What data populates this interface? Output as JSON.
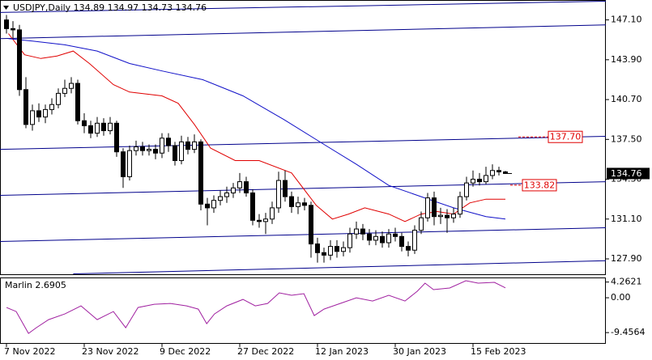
{
  "chart_data": {
    "type": "candlestick",
    "title": "USDJPY,Daily  134.89 134.97 134.73 134.76",
    "categories": [
      "7 Nov 2022",
      null,
      null,
      null,
      null,
      null,
      null,
      null,
      null,
      null,
      null,
      null,
      "23 Nov 2022",
      null,
      null,
      null,
      null,
      null,
      null,
      null,
      null,
      null,
      null,
      null,
      "9 Dec 2022",
      null,
      null,
      null,
      null,
      null,
      null,
      null,
      null,
      null,
      null,
      null,
      "27 Dec 2022",
      null,
      null,
      null,
      null,
      null,
      null,
      null,
      null,
      null,
      null,
      null,
      "12 Jan 2023",
      null,
      null,
      null,
      null,
      null,
      null,
      null,
      null,
      null,
      null,
      null,
      "30 Jan 2023",
      null,
      null,
      null,
      null,
      null,
      null,
      null,
      null,
      null,
      null,
      null,
      "15 Feb 2023",
      null,
      null,
      null,
      null,
      null
    ],
    "open": [
      147.1,
      146.4,
      146.3,
      141.5,
      138.7,
      139.8,
      139.3,
      139.9,
      140.3,
      141.2,
      141.6,
      142.0,
      139.0,
      138.6,
      138.0,
      138.8,
      138.2,
      138.8,
      136.5,
      134.5,
      136.6,
      136.9,
      136.6,
      136.7,
      136.4,
      137.6,
      137.0,
      135.8,
      137.3,
      136.7,
      137.3,
      132.3,
      132.0,
      132.6,
      132.9,
      133.2,
      133.6,
      134.1,
      133.2,
      131.0,
      130.9,
      131.1,
      132.0,
      134.2,
      132.9,
      132.1,
      132.4,
      132.2,
      129.1,
      128.4,
      128.2,
      128.9,
      128.5,
      128.8,
      129.9,
      130.3,
      129.9,
      129.4,
      129.7,
      129.2,
      129.9,
      129.7,
      128.9,
      128.6,
      130.2,
      131.2,
      132.8,
      131.3,
      131.4,
      131.2,
      131.5,
      132.9,
      134.0,
      134.3,
      134.1,
      134.6,
      135.0,
      134.89
    ],
    "high": [
      147.5,
      147.0,
      146.7,
      142.5,
      140.3,
      140.4,
      140.3,
      140.8,
      141.6,
      142.3,
      142.5,
      142.3,
      139.6,
      139.0,
      139.3,
      139.2,
      139.3,
      139.0,
      136.8,
      137.0,
      137.4,
      137.3,
      137.1,
      137.1,
      138.0,
      138.0,
      137.3,
      137.8,
      137.7,
      137.9,
      137.5,
      132.8,
      133.0,
      133.4,
      133.7,
      134.0,
      134.8,
      134.5,
      133.5,
      131.5,
      131.6,
      132.5,
      134.9,
      135.0,
      133.3,
      132.9,
      132.8,
      132.5,
      129.6,
      128.8,
      129.4,
      129.4,
      129.3,
      130.4,
      130.9,
      130.7,
      130.3,
      130.2,
      130.1,
      130.3,
      130.4,
      130.0,
      129.3,
      130.6,
      131.7,
      133.2,
      133.3,
      132.0,
      131.9,
      132.0,
      133.3,
      134.5,
      135.0,
      134.8,
      135.3,
      135.5,
      135.3,
      134.97
    ],
    "low": [
      146.0,
      145.6,
      141.0,
      138.4,
      138.2,
      138.9,
      138.8,
      139.5,
      140.0,
      140.9,
      141.2,
      138.7,
      138.0,
      137.6,
      137.7,
      137.8,
      137.9,
      136.1,
      133.6,
      134.2,
      136.2,
      136.2,
      136.2,
      135.9,
      136.0,
      136.5,
      135.4,
      135.5,
      136.3,
      136.4,
      131.8,
      130.6,
      131.6,
      132.2,
      132.4,
      132.8,
      133.2,
      132.9,
      130.6,
      130.4,
      129.9,
      130.7,
      131.6,
      132.5,
      131.6,
      131.5,
      131.8,
      128.0,
      127.6,
      127.6,
      127.8,
      128.0,
      128.1,
      128.4,
      129.5,
      129.4,
      129.0,
      129.0,
      128.8,
      128.8,
      129.3,
      128.5,
      128.1,
      128.3,
      129.9,
      130.9,
      130.6,
      130.7,
      130.0,
      130.8,
      131.2,
      132.6,
      133.7,
      133.8,
      133.9,
      134.3,
      134.6,
      134.73
    ],
    "close": [
      146.4,
      146.3,
      141.5,
      138.7,
      139.8,
      139.3,
      139.9,
      140.3,
      141.2,
      141.6,
      142.0,
      139.0,
      138.6,
      138.0,
      138.8,
      138.2,
      138.8,
      136.5,
      134.5,
      136.6,
      136.9,
      136.6,
      136.7,
      136.4,
      137.6,
      137.0,
      135.8,
      137.3,
      136.7,
      137.3,
      132.3,
      132.0,
      132.6,
      132.9,
      133.2,
      133.6,
      134.1,
      133.2,
      131.0,
      130.9,
      131.1,
      132.0,
      134.2,
      132.9,
      132.1,
      132.4,
      132.2,
      129.1,
      128.4,
      128.2,
      128.9,
      128.5,
      128.8,
      129.9,
      130.3,
      129.9,
      129.4,
      129.7,
      129.2,
      129.9,
      129.7,
      128.9,
      128.6,
      130.2,
      131.2,
      132.8,
      131.3,
      131.4,
      131.2,
      131.5,
      132.9,
      134.0,
      134.3,
      134.1,
      134.6,
      135.0,
      134.89,
      134.76
    ],
    "xlim": [
      -1,
      92.5
    ],
    "ylim": [
      126.6,
      148.7
    ],
    "yticks": [
      {
        "value": 147.1,
        "label": "147.10"
      },
      {
        "value": 143.9,
        "label": "143.90"
      },
      {
        "value": 140.7,
        "label": "140.70"
      },
      {
        "value": 137.5,
        "label": "137.50"
      },
      {
        "value": 134.3,
        "label": "134.30"
      },
      {
        "value": 131.1,
        "label": "131.10"
      },
      {
        "value": 127.9,
        "label": "127.90"
      }
    ],
    "current_price": {
      "value": 134.76,
      "color": "#000000"
    },
    "lines": [
      {
        "color": "#e00000",
        "x": [
          0.3,
          2.8,
          5.3,
          7.8,
          10.3,
          12.8,
          16.5,
          19,
          24,
          26.5,
          29,
          31.5,
          35.3,
          39,
          44,
          47.8,
          50.3,
          52.8,
          55.3,
          59,
          61.5,
          64,
          66.5,
          69,
          71.5,
          74,
          77
        ],
        "values": [
          146.0,
          144.3,
          144.0,
          144.2,
          144.6,
          143.6,
          141.9,
          141.3,
          141.0,
          140.4,
          138.7,
          136.8,
          135.8,
          135.8,
          134.8,
          132.2,
          131.1,
          131.5,
          132.0,
          131.5,
          130.9,
          131.5,
          131.7,
          131.5,
          132.4,
          132.7,
          132.7
        ]
      },
      {
        "color": "#1010c8",
        "x": [
          0.3,
          4,
          9,
          14,
          19,
          24,
          30.3,
          36.5,
          42.8,
          49,
          54,
          59,
          64,
          69,
          74,
          77
        ],
        "values": [
          145.6,
          145.4,
          145.1,
          144.6,
          143.6,
          143.0,
          142.3,
          141.0,
          139.1,
          137.1,
          135.5,
          133.8,
          132.9,
          132.0,
          131.3,
          131.1
        ]
      }
    ],
    "trendlines": [
      {
        "color": "#00008b",
        "x": [
          -1,
          92.5
        ],
        "values": [
          147.7,
          148.6
        ]
      },
      {
        "color": "#00008b",
        "x": [
          -1,
          92.5
        ],
        "values": [
          145.6,
          146.7
        ]
      },
      {
        "color": "#00008b",
        "x": [
          -1,
          92.5
        ],
        "values": [
          136.7,
          137.75
        ]
      },
      {
        "color": "#00008b",
        "x": [
          -1,
          92.5
        ],
        "values": [
          133.0,
          134.1
        ]
      },
      {
        "color": "#00008b",
        "x": [
          -1,
          92.5
        ],
        "values": [
          129.3,
          130.4
        ]
      },
      {
        "color": "#00008b",
        "x": [
          10.3,
          92.5
        ],
        "values": [
          126.7,
          127.75
        ]
      }
    ],
    "levels": [
      {
        "value": 137.7,
        "label": "137.70",
        "color": "#e00000"
      },
      {
        "value": 133.82,
        "label": "133.82",
        "color": "#e00000"
      }
    ],
    "indicator": {
      "type": "line",
      "name": "Marlin",
      "value": 2.6905,
      "color": "#a020a0",
      "x": [
        0,
        1.5,
        3.4,
        4.6,
        6.5,
        9,
        11.5,
        14,
        16.5,
        18.4,
        20.3,
        22.8,
        25.3,
        27.8,
        29.6,
        30.9,
        32.1,
        34,
        36.5,
        38.4,
        40.3,
        42.1,
        44,
        45.9,
        47.5,
        49,
        51.5,
        54,
        56.5,
        59,
        61.5,
        63.4,
        64.6,
        65.9,
        68.4,
        70.9,
        72.8,
        75.3,
        77
      ],
      "values": [
        -2.64,
        -3.74,
        -9.67,
        -8.13,
        -5.93,
        -4.4,
        -2.2,
        -5.93,
        -3.74,
        -8.13,
        -2.64,
        -1.76,
        -1.54,
        -2.2,
        -3.08,
        -7.03,
        -4.4,
        -2.2,
        -0.44,
        -2.2,
        -1.54,
        1.32,
        0.66,
        1.1,
        -4.84,
        -3.08,
        -1.54,
        0,
        -0.88,
        0.66,
        -0.88,
        1.76,
        3.96,
        2.2,
        2.64,
        4.62,
        3.96,
        4.18,
        2.6905
      ],
      "ylim": [
        -12.5,
        5.5
      ],
      "yticks": [
        4.2621,
        {
          "value": 0,
          "label": "0.00"
        },
        -9.4564
      ]
    }
  }
}
